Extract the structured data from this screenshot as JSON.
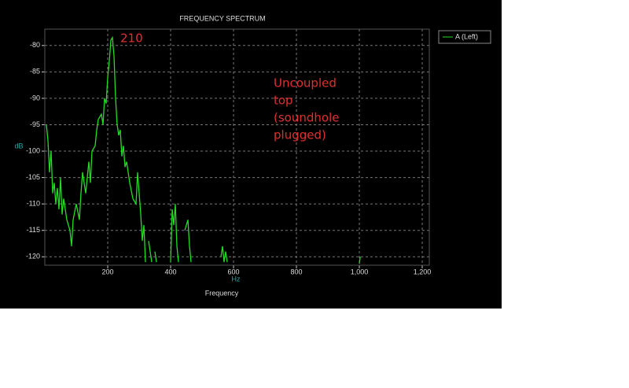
{
  "chart_data": {
    "type": "line",
    "title": "FREQUENCY SPECTRUM",
    "xlabel": "Frequency",
    "xunit": "Hz",
    "ylabel": "dB",
    "x": [
      5,
      10,
      15,
      20,
      25,
      30,
      35,
      40,
      45,
      50,
      55,
      60,
      70,
      80,
      85,
      90,
      100,
      110,
      115,
      120,
      130,
      140,
      145,
      150,
      160,
      165,
      170,
      180,
      185,
      190,
      195,
      200,
      205,
      210,
      215,
      220,
      225,
      230,
      235,
      240,
      245,
      250,
      255,
      260,
      270,
      280,
      290,
      295,
      300,
      305,
      310,
      315,
      320,
      325,
      330,
      340,
      345,
      350,
      355,
      360,
      400,
      405,
      410,
      415,
      420,
      425,
      430,
      445,
      455,
      460,
      465,
      470,
      560,
      565,
      570,
      575,
      580,
      585,
      1000,
      1003
    ],
    "series": [
      {
        "name": "A (Left)",
        "color": "#22dd22",
        "values": [
          -95,
          -98,
          -104,
          -100,
          -108,
          -106,
          -110,
          -107,
          -111,
          -105,
          -112,
          -109,
          -113,
          -115,
          -118,
          -113,
          -110,
          -113,
          -108,
          -104,
          -108,
          -102,
          -106,
          -100,
          -99,
          -96,
          -94,
          -93,
          -95,
          -90,
          -91,
          -86,
          -83,
          -79,
          -78.5,
          -82,
          -90,
          -95,
          -97,
          -96,
          -101,
          -99,
          -103,
          -102,
          -106,
          -109,
          -110,
          -104,
          -108,
          -112,
          -117,
          -114,
          -121,
          null,
          -117,
          -121,
          null,
          -119,
          -121,
          null,
          -121,
          -111,
          -114,
          -110,
          -118,
          -121,
          null,
          -115,
          -113,
          -118,
          -121,
          null,
          -120,
          -118,
          -121,
          -119,
          -121,
          null,
          -121.3,
          -120
        ]
      }
    ],
    "xlim": [
      0,
      1200
    ],
    "ylim": [
      -121.6,
      -76.9
    ],
    "xticks": [
      200,
      400,
      600,
      800,
      {
        "value": 1000,
        "label": "1,000"
      },
      {
        "value": 1200,
        "label": "1,200"
      }
    ],
    "yticks": [
      -80,
      -85,
      -90,
      -95,
      -100,
      -105,
      -110,
      -115,
      -120
    ],
    "grid": true,
    "legend": "top-right",
    "annotations": [
      {
        "text": "210"
      },
      {
        "lines": [
          "Uncoupled",
          "top",
          "(soundhole",
          "plugged)"
        ]
      }
    ]
  }
}
